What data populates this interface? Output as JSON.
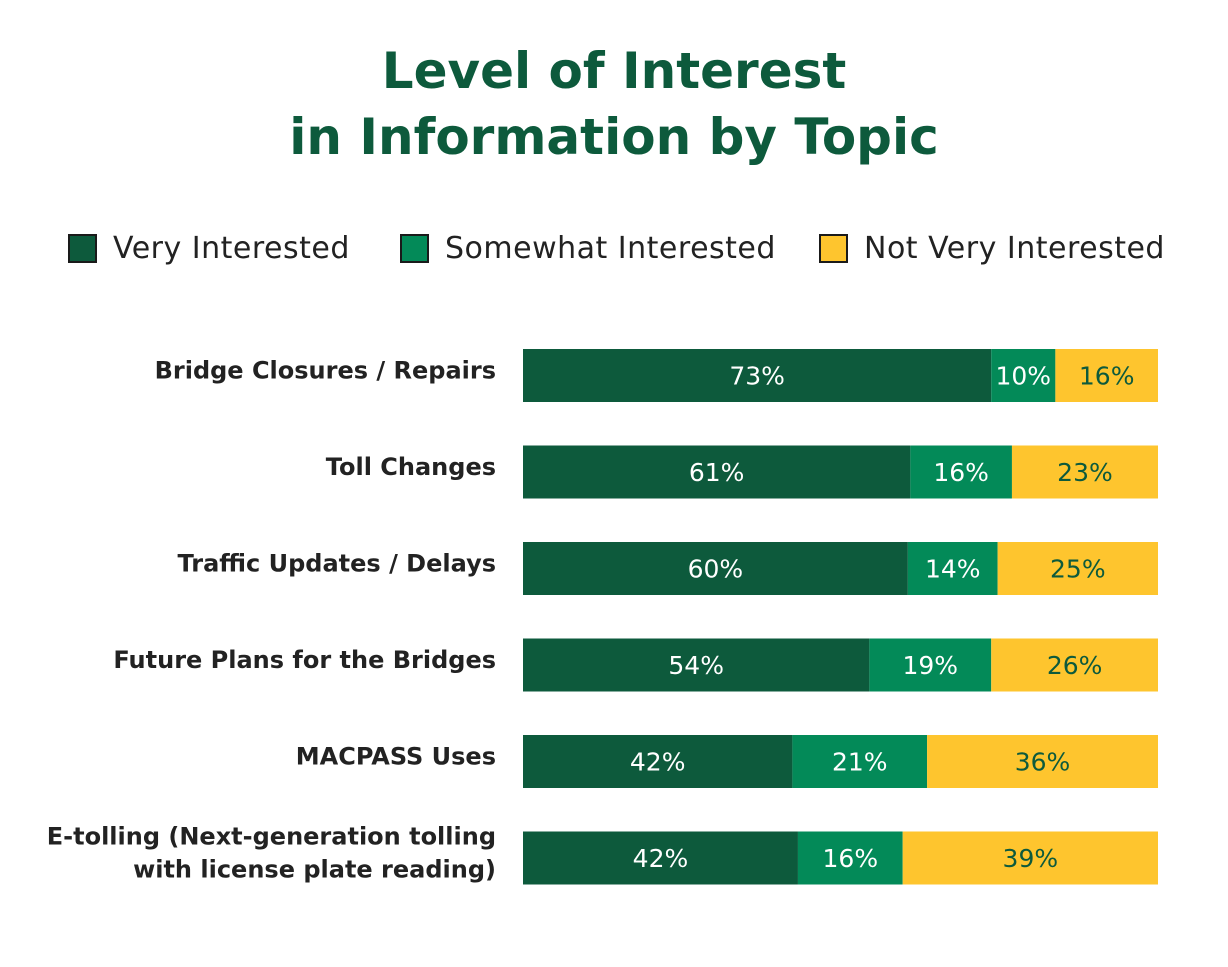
{
  "chart_data": {
    "type": "bar",
    "orientation": "horizontal",
    "stacked": true,
    "title_lines": [
      "Level of Interest",
      "in Information by Topic"
    ],
    "categories": [
      [
        "Bridge Closures / Repairs"
      ],
      [
        "Toll Changes"
      ],
      [
        "Traffic Updates / Delays"
      ],
      [
        "Future Plans for the Bridges"
      ],
      [
        "MACPASS Uses"
      ],
      [
        "E-tolling (Next-generation tolling",
        "with license plate reading)"
      ]
    ],
    "series": [
      {
        "name": "Very Interested",
        "color": "#0d5a3c",
        "label_color": "#ffffff",
        "values": [
          73,
          61,
          60,
          54,
          42,
          42
        ]
      },
      {
        "name": "Somewhat Interested",
        "color": "#038a58",
        "label_color": "#ffffff",
        "values": [
          10,
          16,
          14,
          19,
          21,
          16
        ]
      },
      {
        "name": "Not Very Interested",
        "color": "#fec52e",
        "label_color": "#0d5a3c",
        "values": [
          16,
          23,
          25,
          26,
          36,
          39
        ]
      }
    ],
    "value_suffix": "%",
    "legend_position": "top"
  }
}
